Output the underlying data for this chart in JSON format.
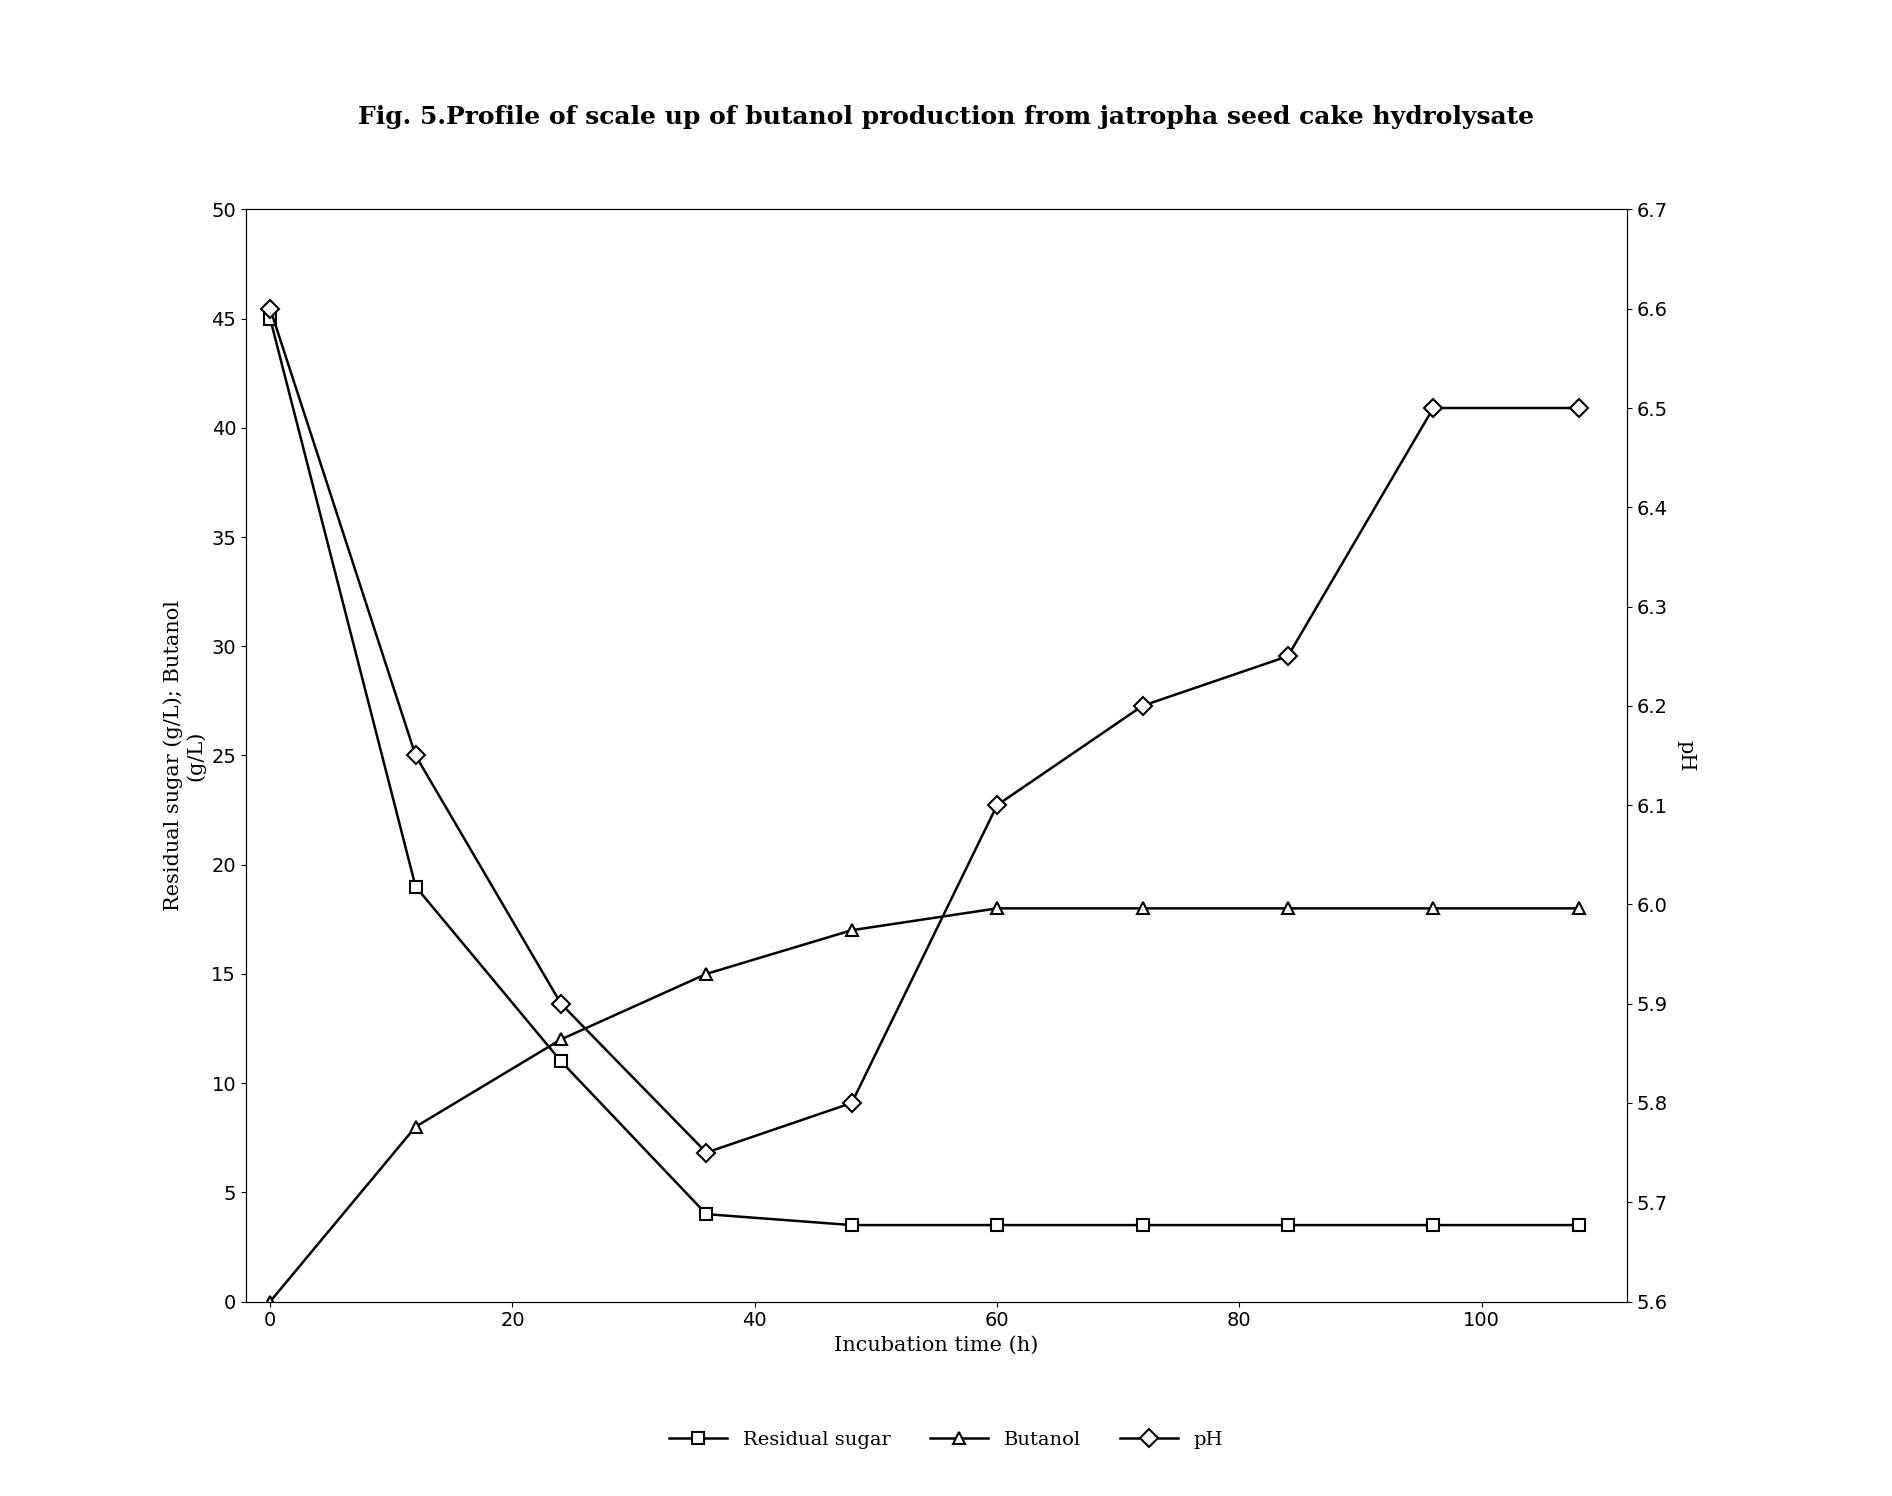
{
  "title": "Fig. 5.Profile of scale up of butanol production from jatropha seed cake hydrolysate",
  "xlabel": "Incubation time (h)",
  "ylabel_left": "Residual sugar (g/L); Butanol\n(g/L)",
  "ylabel_right": "pH",
  "ylim_left": [
    0,
    50
  ],
  "ylim_right": [
    5.6,
    6.7
  ],
  "xlim": [
    -2,
    112
  ],
  "xticks": [
    0,
    20,
    40,
    60,
    80,
    100
  ],
  "yticks_left": [
    0,
    5,
    10,
    15,
    20,
    25,
    30,
    35,
    40,
    45,
    50
  ],
  "yticks_right": [
    5.6,
    5.7,
    5.8,
    5.9,
    6.0,
    6.1,
    6.2,
    6.3,
    6.4,
    6.5,
    6.6,
    6.7
  ],
  "residual_sugar_x": [
    0,
    12,
    24,
    36,
    48,
    60,
    72,
    84,
    96,
    108
  ],
  "residual_sugar_y": [
    45,
    19,
    11,
    4,
    3.5,
    3.5,
    3.5,
    3.5,
    3.5,
    3.5
  ],
  "butanol_x": [
    0,
    12,
    24,
    36,
    48,
    60,
    72,
    84,
    96,
    108
  ],
  "butanol_y": [
    0,
    8,
    12,
    15,
    17,
    18,
    18,
    18,
    18,
    18
  ],
  "ph_x": [
    0,
    12,
    24,
    36,
    48,
    60,
    72,
    84,
    96,
    108
  ],
  "ph_y": [
    6.6,
    6.15,
    5.9,
    5.75,
    5.8,
    6.1,
    6.2,
    6.25,
    6.5,
    6.5
  ],
  "legend_labels": [
    "Residual sugar",
    "Butanol",
    "pH"
  ],
  "line_color": "#000000",
  "marker_residual": "s",
  "marker_butanol": "^",
  "marker_ph": "D",
  "title_fontsize": 18,
  "label_fontsize": 15,
  "tick_fontsize": 14,
  "legend_fontsize": 14
}
